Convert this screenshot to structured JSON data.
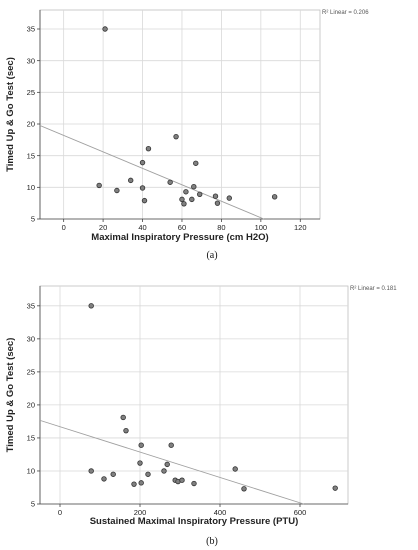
{
  "chart_data": [
    {
      "type": "scatter",
      "panel_label": "(a)",
      "xlabel": "Maximal Inspiratory Pressure (cm H2O)",
      "ylabel": "Timed Up & Go Test (sec)",
      "fit_label": "R² Linear = 0.206",
      "xlim": [
        -12,
        130
      ],
      "ylim": [
        5,
        38
      ],
      "xticks": [
        0,
        20,
        40,
        60,
        80,
        100,
        120
      ],
      "yticks": [
        5,
        10,
        15,
        20,
        25,
        30,
        35
      ],
      "grid": true,
      "fit_line": {
        "intercept": 18.2,
        "slope": -0.13
      },
      "points": [
        {
          "x": 18,
          "y": 10.3
        },
        {
          "x": 21,
          "y": 35
        },
        {
          "x": 27,
          "y": 9.5
        },
        {
          "x": 34,
          "y": 11.1
        },
        {
          "x": 40,
          "y": 13.9
        },
        {
          "x": 40,
          "y": 9.9
        },
        {
          "x": 41,
          "y": 7.9
        },
        {
          "x": 43,
          "y": 16.1
        },
        {
          "x": 54,
          "y": 10.8
        },
        {
          "x": 57,
          "y": 18
        },
        {
          "x": 60,
          "y": 8.1
        },
        {
          "x": 61,
          "y": 7.4
        },
        {
          "x": 62,
          "y": 9.3
        },
        {
          "x": 65,
          "y": 8.1
        },
        {
          "x": 66,
          "y": 10.1
        },
        {
          "x": 67,
          "y": 13.8
        },
        {
          "x": 69,
          "y": 8.9
        },
        {
          "x": 77,
          "y": 8.6
        },
        {
          "x": 78,
          "y": 7.5
        },
        {
          "x": 84,
          "y": 8.3
        },
        {
          "x": 107,
          "y": 8.5
        }
      ]
    },
    {
      "type": "scatter",
      "panel_label": "(b)",
      "xlabel": "Sustained Maximal Inspiratory Pressure (PTU)",
      "ylabel": "Timed Up & Go Test (sec)",
      "fit_label": "R² Linear = 0.181",
      "xlim": [
        -50,
        720
      ],
      "ylim": [
        5,
        38
      ],
      "xticks": [
        0,
        200,
        400,
        600
      ],
      "yticks": [
        5,
        10,
        15,
        20,
        25,
        30,
        35
      ],
      "grid": true,
      "fit_line": {
        "intercept": 16.7,
        "slope": -0.0192
      },
      "points": [
        {
          "x": 78,
          "y": 35
        },
        {
          "x": 78,
          "y": 10
        },
        {
          "x": 110,
          "y": 8.8
        },
        {
          "x": 133,
          "y": 9.5
        },
        {
          "x": 158,
          "y": 18.1
        },
        {
          "x": 165,
          "y": 16.1
        },
        {
          "x": 185,
          "y": 8
        },
        {
          "x": 200,
          "y": 11.2
        },
        {
          "x": 203,
          "y": 13.9
        },
        {
          "x": 203,
          "y": 8.2
        },
        {
          "x": 220,
          "y": 9.5
        },
        {
          "x": 260,
          "y": 10
        },
        {
          "x": 268,
          "y": 11
        },
        {
          "x": 278,
          "y": 13.9
        },
        {
          "x": 288,
          "y": 8.6
        },
        {
          "x": 295,
          "y": 8.4
        },
        {
          "x": 305,
          "y": 8.6
        },
        {
          "x": 335,
          "y": 8.1
        },
        {
          "x": 438,
          "y": 10.3
        },
        {
          "x": 460,
          "y": 7.3
        },
        {
          "x": 688,
          "y": 7.4
        }
      ]
    }
  ]
}
